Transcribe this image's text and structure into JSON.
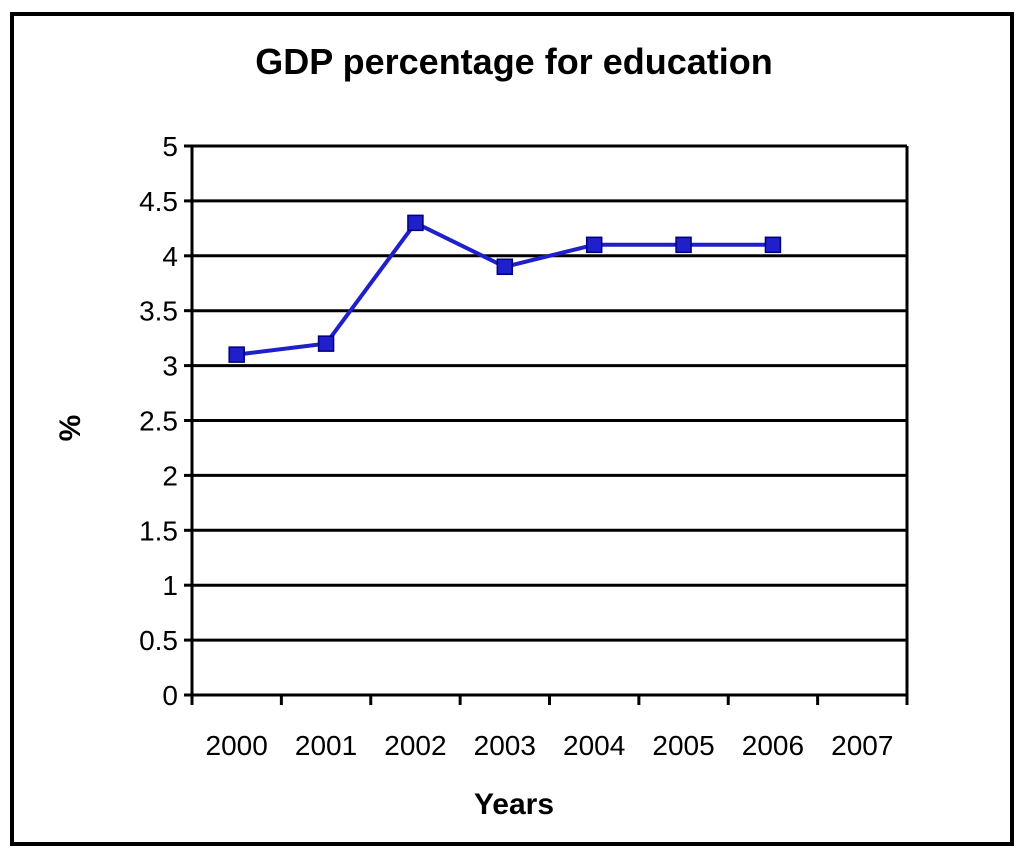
{
  "chart_data": {
    "type": "line",
    "title": "GDP percentage for education",
    "xlabel": "Years",
    "ylabel": "%",
    "categories": [
      "2000",
      "2001",
      "2002",
      "2003",
      "2004",
      "2005",
      "2006",
      "2007"
    ],
    "yticks": [
      "0",
      "0.5",
      "1",
      "1.5",
      "2",
      "2.5",
      "3",
      "3.5",
      "4",
      "4.5",
      "5"
    ],
    "ylim": [
      0,
      5
    ],
    "grid": true,
    "legend": "none",
    "series": [
      {
        "values": [
          3.1,
          3.2,
          4.3,
          3.9,
          4.1,
          4.1,
          4.1,
          null
        ],
        "color": "#1f1fcc",
        "marker": "square"
      }
    ]
  }
}
